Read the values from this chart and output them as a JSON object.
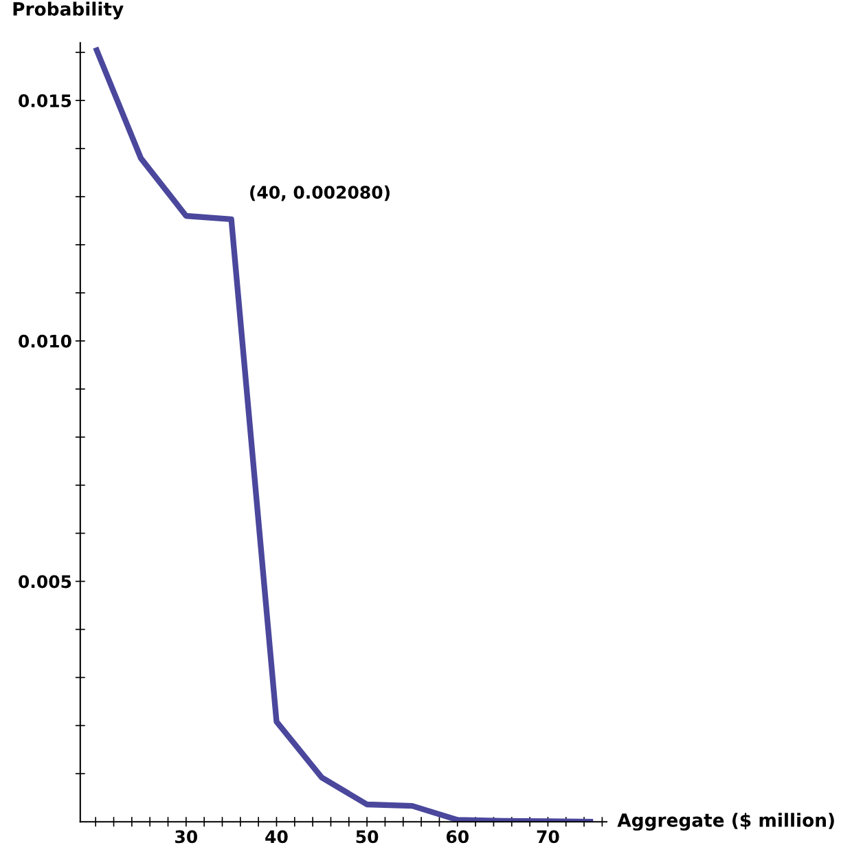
{
  "chart_data": {
    "type": "line",
    "xlabel": "Aggregate ($ million)",
    "ylabel": "Probability",
    "x": [
      20,
      25,
      30,
      35,
      40,
      45,
      50,
      55,
      60,
      65,
      70,
      75
    ],
    "series": [
      {
        "color": "#4a479c",
        "values": [
          0.0161,
          0.0138,
          0.0126,
          0.01253,
          0.00208,
          0.00092,
          0.00036,
          0.00033,
          4e-05,
          2e-05,
          1e-05,
          0.0
        ]
      }
    ],
    "xlim": [
      18.3,
      76.5
    ],
    "ylim": [
      0,
      0.0162
    ],
    "xticks": [
      {
        "value": 20,
        "label": null
      },
      {
        "value": 22,
        "label": null
      },
      {
        "value": 24,
        "label": null
      },
      {
        "value": 26,
        "label": null
      },
      {
        "value": 28,
        "label": null
      },
      30,
      {
        "value": 32,
        "label": null
      },
      {
        "value": 34,
        "label": null
      },
      {
        "value": 36,
        "label": null
      },
      {
        "value": 38,
        "label": null
      },
      40,
      {
        "value": 42,
        "label": null
      },
      {
        "value": 44,
        "label": null
      },
      {
        "value": 46,
        "label": null
      },
      {
        "value": 48,
        "label": null
      },
      50,
      {
        "value": 52,
        "label": null
      },
      {
        "value": 54,
        "label": null
      },
      {
        "value": 56,
        "label": null
      },
      {
        "value": 58,
        "label": null
      },
      60,
      {
        "value": 62,
        "label": null
      },
      {
        "value": 64,
        "label": null
      },
      {
        "value": 66,
        "label": null
      },
      {
        "value": 68,
        "label": null
      },
      70,
      {
        "value": 72,
        "label": null
      },
      {
        "value": 74,
        "label": null
      },
      {
        "value": 76,
        "label": null
      }
    ],
    "yticks": [
      {
        "value": 0.001,
        "label": null
      },
      {
        "value": 0.002,
        "label": null
      },
      {
        "value": 0.003,
        "label": null
      },
      {
        "value": 0.004,
        "label": null
      },
      {
        "value": 0.005,
        "label": "0.005"
      },
      {
        "value": 0.006,
        "label": null
      },
      {
        "value": 0.007,
        "label": null
      },
      {
        "value": 0.008,
        "label": null
      },
      {
        "value": 0.009,
        "label": null
      },
      {
        "value": 0.01,
        "label": "0.010"
      },
      {
        "value": 0.011,
        "label": null
      },
      {
        "value": 0.012,
        "label": null
      },
      {
        "value": 0.013,
        "label": null
      },
      {
        "value": 0.014,
        "label": null
      },
      {
        "value": 0.015,
        "label": "0.015"
      },
      {
        "value": 0.016,
        "label": null
      }
    ],
    "annotations": [
      "(40, 0.002080)"
    ],
    "grid": false,
    "marker": "none",
    "line_style": "solid"
  }
}
